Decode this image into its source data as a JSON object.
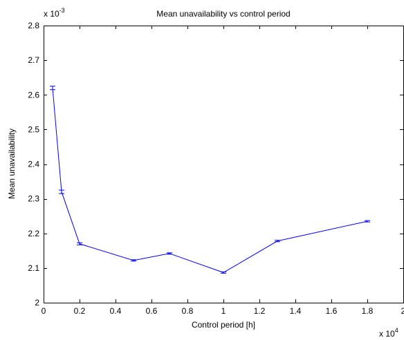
{
  "chart_data": {
    "type": "line",
    "title": "Mean unavailability vs control period",
    "xlabel": "Control period [h]",
    "ylabel": "Mean unavailability",
    "x_multiplier_label": "x 10",
    "x_multiplier_exponent": "4",
    "y_multiplier_label": "x 10",
    "y_multiplier_exponent": "-3",
    "xlim": [
      0,
      20000
    ],
    "ylim": [
      0.002,
      0.0028
    ],
    "x_ticks": [
      0,
      2000,
      4000,
      6000,
      8000,
      10000,
      12000,
      14000,
      16000,
      18000,
      20000
    ],
    "x_tick_labels": [
      "0",
      "0.2",
      "0.4",
      "0.6",
      "0.8",
      "1",
      "1.2",
      "1.4",
      "1.6",
      "1.8",
      "2"
    ],
    "y_ticks": [
      0.002,
      0.0021,
      0.0022,
      0.0023,
      0.0024,
      0.0025,
      0.0026,
      0.0027,
      0.0028
    ],
    "y_tick_labels": [
      "2",
      "2.1",
      "2.2",
      "2.3",
      "2.4",
      "2.5",
      "2.6",
      "2.7",
      "2.8"
    ],
    "grid": false,
    "series": [
      {
        "color": "#0000ff",
        "x": [
          500,
          1000,
          2000,
          5000,
          7000,
          10000,
          13000,
          18000
        ],
        "y": [
          0.00262,
          0.00232,
          0.00217,
          0.002122,
          0.002142,
          0.002087,
          0.002178,
          0.002235
        ],
        "error": [
          5e-06,
          5e-06,
          3e-06,
          2e-06,
          2e-06,
          2e-06,
          2e-06,
          2e-06
        ]
      }
    ]
  }
}
